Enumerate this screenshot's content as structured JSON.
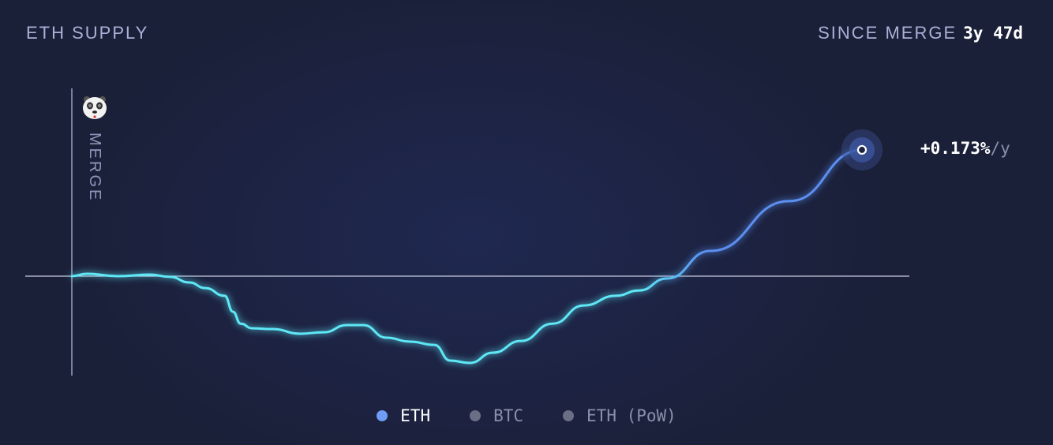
{
  "header": {
    "title": "ETH SUPPLY",
    "since_label": "SINCE MERGE",
    "since_value": "3y 47d"
  },
  "annotation": {
    "merge_label": "MERGE",
    "merge_icon": "panda-icon"
  },
  "rate": {
    "value": "+0.173%",
    "unit": "/y"
  },
  "legend": [
    {
      "label": "ETH",
      "color": "#6f9df5",
      "active": true
    },
    {
      "label": "BTC",
      "color": "#6b6f86",
      "active": false
    },
    {
      "label": "ETH (PoW)",
      "color": "#6b6f86",
      "active": false
    }
  ],
  "colors": {
    "line_start": "#5ee7f5",
    "line_end": "#5b8ff0",
    "baseline": "#c8cbe0"
  },
  "chart_data": {
    "type": "line",
    "xlim": [
      "2022-09-15",
      "2025-11-01"
    ],
    "ylim": [
      -0.425,
      0.803
    ],
    "grid": false,
    "baseline": 0,
    "series": [
      {
        "name": "ETH",
        "points": [
          [
            "2022-09-15",
            0
          ],
          [
            "2022-10-08",
            0.01
          ],
          [
            "2022-11-22",
            0
          ],
          [
            "2023-01-07",
            0.007
          ],
          [
            "2023-02-05",
            -0.003
          ],
          [
            "2023-03-05",
            -0.027
          ],
          [
            "2023-03-28",
            -0.051
          ],
          [
            "2023-04-25",
            -0.084
          ],
          [
            "2023-05-07",
            -0.152
          ],
          [
            "2023-05-18",
            -0.203
          ],
          [
            "2023-06-04",
            -0.223
          ],
          [
            "2023-07-03",
            -0.226
          ],
          [
            "2023-08-12",
            -0.246
          ],
          [
            "2023-09-15",
            -0.24
          ],
          [
            "2023-10-19",
            -0.209
          ],
          [
            "2023-11-11",
            -0.209
          ],
          [
            "2023-12-15",
            -0.263
          ],
          [
            "2024-01-18",
            -0.28
          ],
          [
            "2024-02-22",
            -0.294
          ],
          [
            "2024-03-16",
            -0.361
          ],
          [
            "2024-04-13",
            -0.371
          ],
          [
            "2024-05-17",
            -0.327
          ],
          [
            "2024-06-26",
            -0.277
          ],
          [
            "2024-08-11",
            -0.203
          ],
          [
            "2024-09-25",
            -0.125
          ],
          [
            "2024-11-10",
            -0.084
          ],
          [
            "2024-12-14",
            -0.061
          ],
          [
            "2025-01-23",
            -0.01
          ],
          [
            "2025-03-27",
            0.108
          ],
          [
            "2025-07-19",
            0.321
          ],
          [
            "2025-11-01",
            0.54
          ]
        ]
      }
    ]
  }
}
